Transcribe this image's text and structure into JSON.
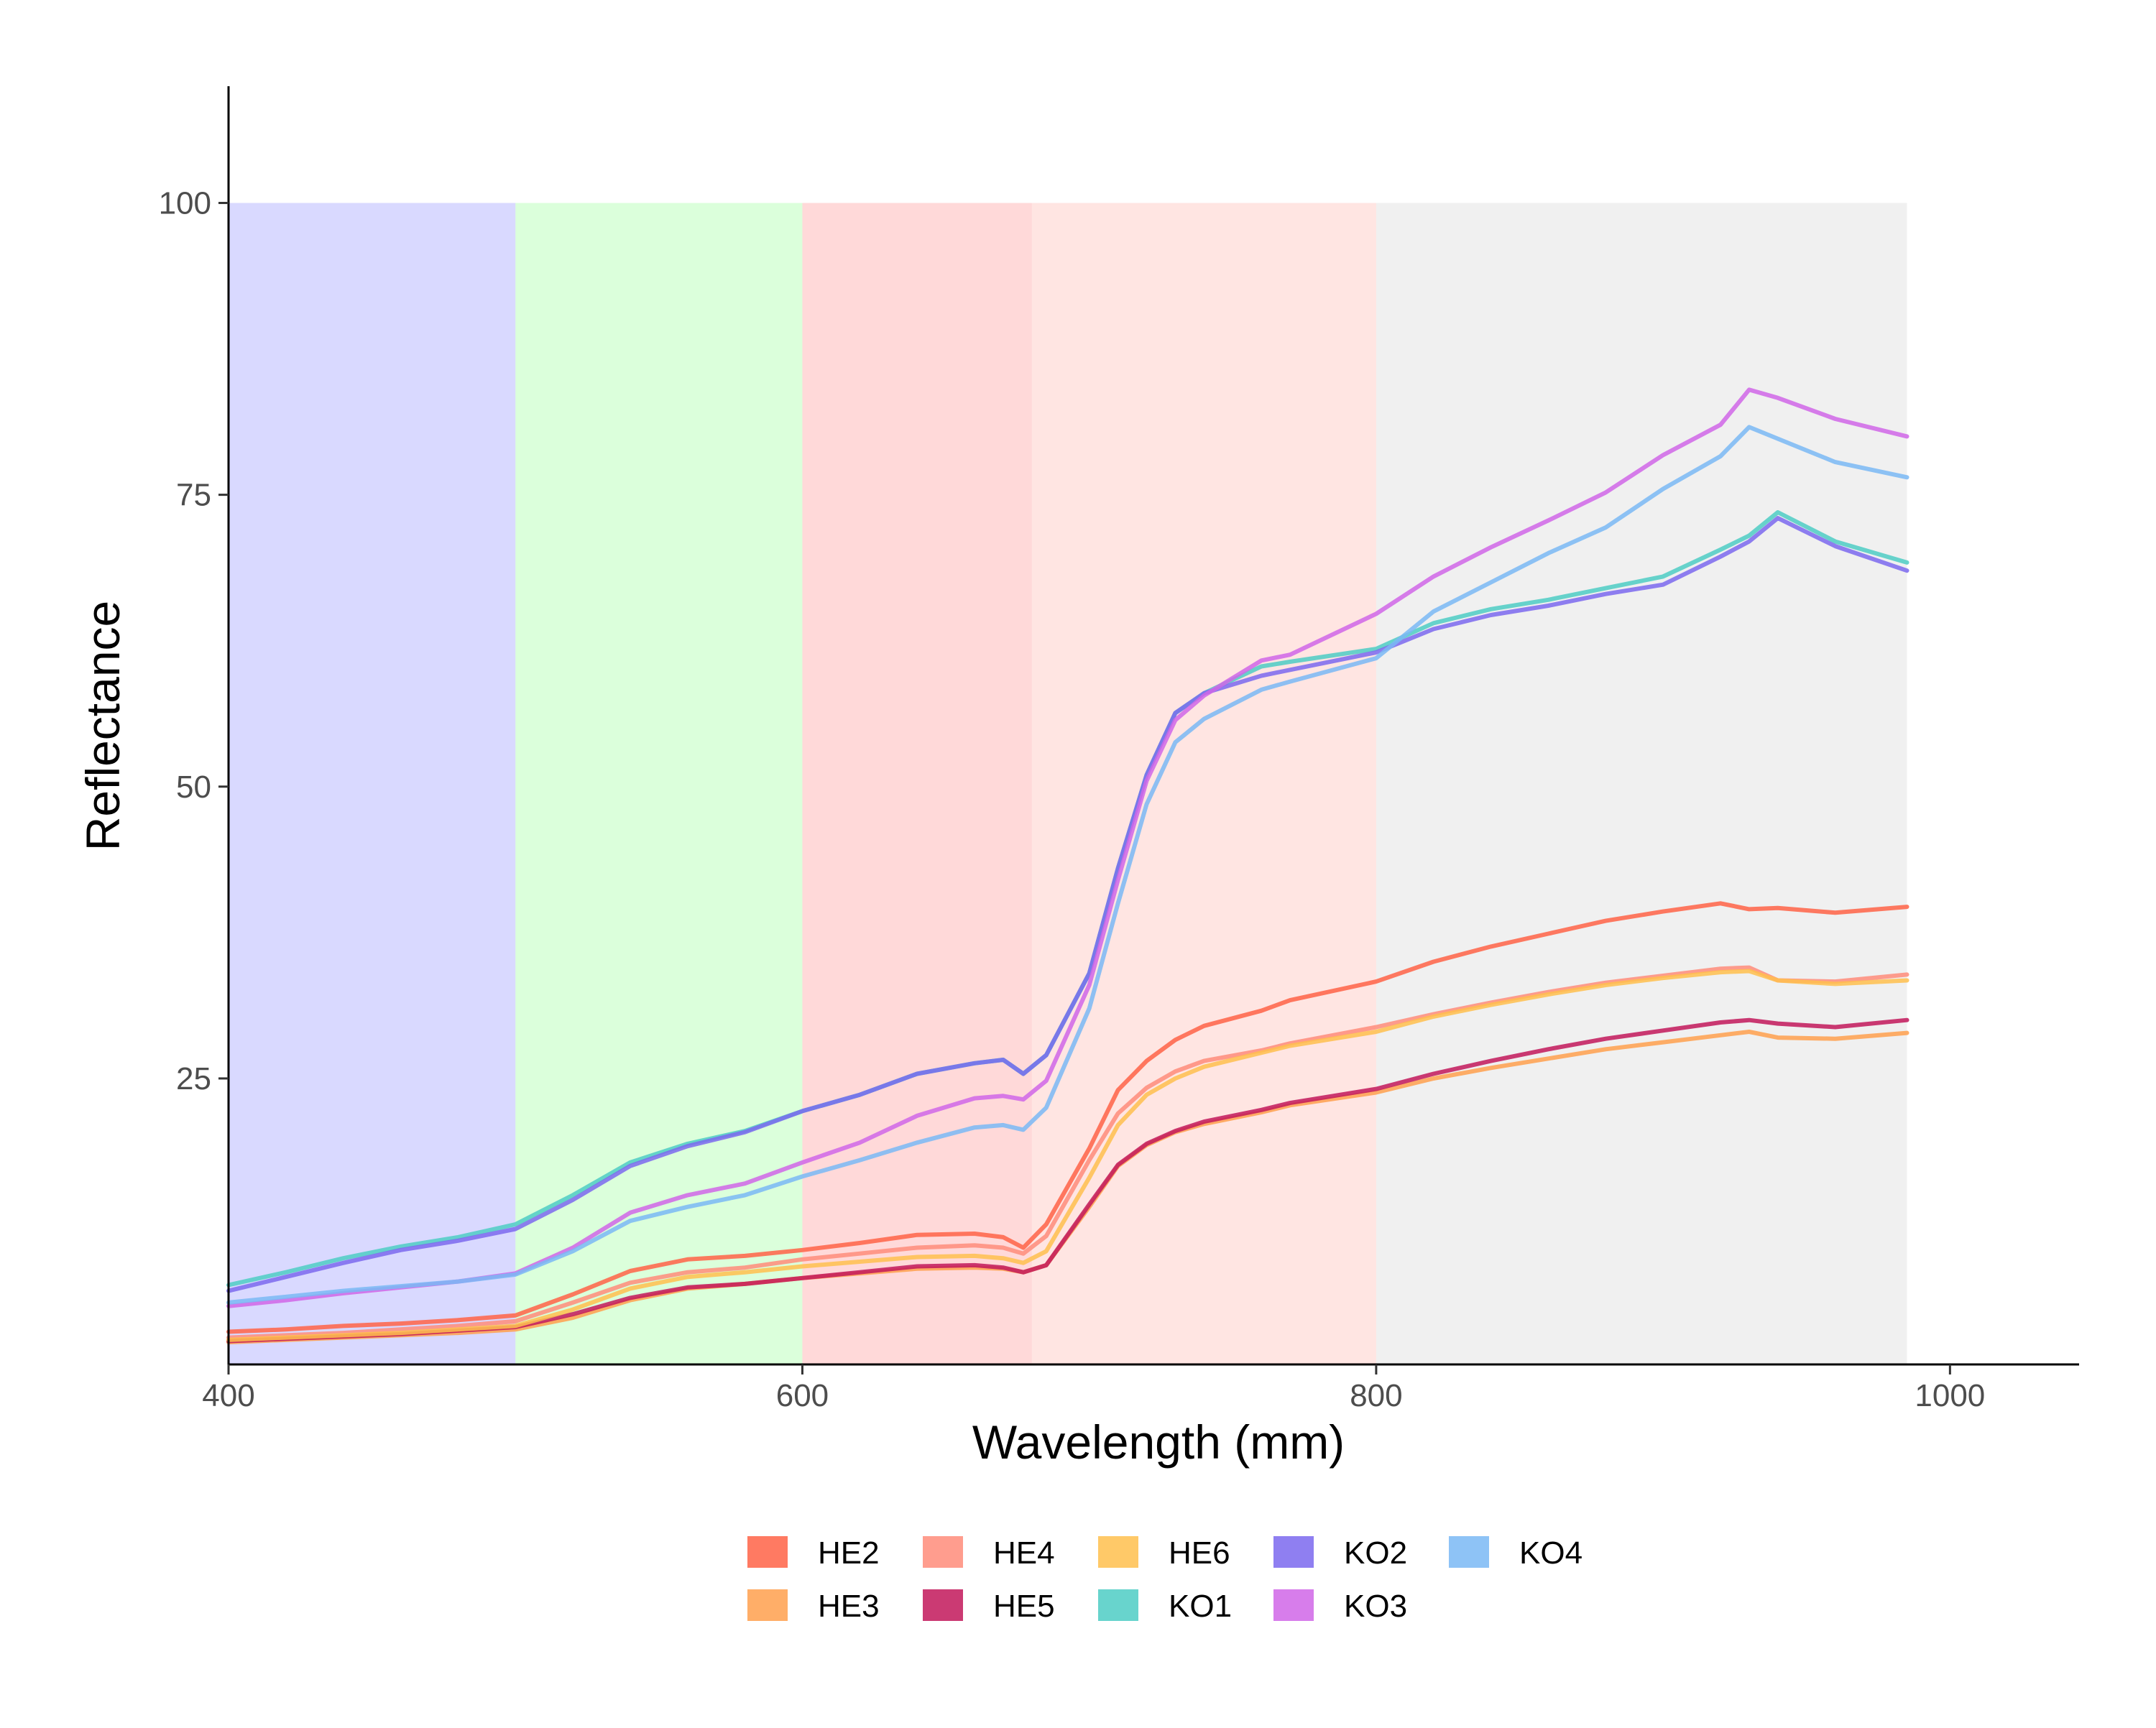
{
  "chart_data": {
    "type": "line",
    "title": "",
    "xlabel": "Wavelength (mm)",
    "ylabel": "Reflectance",
    "xlim": [
      400,
      1045
    ],
    "ylim": [
      0.5,
      110
    ],
    "x_ticks": [
      400,
      600,
      800,
      1000
    ],
    "x_tick_labels": [
      "400",
      "600",
      "800",
      "1000"
    ],
    "y_ticks": [
      25,
      50,
      75,
      100
    ],
    "y_tick_labels": [
      "25",
      "50",
      "75",
      "100"
    ],
    "grid": false,
    "legend_position": "bottom",
    "bands": [
      {
        "x0": 400,
        "x1": 500,
        "y0": 0.5,
        "y1": 100,
        "color": "#0000ff",
        "opacity": 0.15
      },
      {
        "x0": 500,
        "x1": 600,
        "y0": 0.5,
        "y1": 100,
        "color": "#00ff00",
        "opacity": 0.14
      },
      {
        "x0": 600,
        "x1": 680,
        "y0": 0.5,
        "y1": 100,
        "color": "#ff0000",
        "opacity": 0.15
      },
      {
        "x0": 680,
        "x1": 800,
        "y0": 0.5,
        "y1": 100,
        "color": "#ff4433",
        "opacity": 0.14
      },
      {
        "x0": 800,
        "x1": 985,
        "y0": 0.5,
        "y1": 100,
        "color": "#a0a0a0",
        "opacity": 0.16
      }
    ],
    "x": [
      400,
      420,
      440,
      460,
      480,
      500,
      520,
      540,
      560,
      580,
      600,
      620,
      640,
      660,
      670,
      677,
      685,
      700,
      710,
      720,
      730,
      740,
      760,
      770,
      800,
      820,
      840,
      860,
      880,
      900,
      920,
      930,
      940,
      960,
      985
    ],
    "series": [
      {
        "name": "HE2",
        "color": "#ff6347",
        "values": [
          3.3,
          3.5,
          3.8,
          4.0,
          4.3,
          4.7,
          6.5,
          8.5,
          9.5,
          9.8,
          10.3,
          10.9,
          11.6,
          11.7,
          11.4,
          10.5,
          12.5,
          19,
          24,
          26.5,
          28.3,
          29.5,
          30.8,
          31.7,
          33.3,
          35.0,
          36.3,
          37.4,
          38.5,
          39.3,
          40.0,
          39.5,
          39.6,
          39.2,
          39.7
        ]
      },
      {
        "name": "HE3",
        "color": "#ffa04d",
        "values": [
          2.4,
          2.6,
          2.8,
          3.0,
          3.2,
          3.5,
          4.5,
          6.0,
          7.0,
          7.4,
          7.9,
          8.3,
          8.7,
          8.8,
          8.7,
          8.4,
          9.0,
          14,
          17.5,
          19.3,
          20.4,
          21.1,
          22.1,
          22.7,
          23.8,
          25.0,
          25.9,
          26.7,
          27.5,
          28.1,
          28.7,
          29.0,
          28.5,
          28.4,
          28.9
        ]
      },
      {
        "name": "HE4",
        "color": "#ff8c7a",
        "values": [
          2.8,
          3.0,
          3.2,
          3.5,
          3.8,
          4.2,
          5.8,
          7.5,
          8.4,
          8.8,
          9.5,
          10.0,
          10.5,
          10.7,
          10.5,
          10.0,
          11.5,
          18,
          22,
          24.2,
          25.6,
          26.5,
          27.4,
          28.0,
          29.4,
          30.5,
          31.5,
          32.4,
          33.2,
          33.8,
          34.4,
          34.5,
          33.4,
          33.3,
          33.9
        ]
      },
      {
        "name": "HE5",
        "color": "#c2185b",
        "values": [
          2.5,
          2.7,
          2.9,
          3.1,
          3.4,
          3.7,
          4.8,
          6.2,
          7.1,
          7.4,
          7.9,
          8.4,
          8.9,
          9.0,
          8.8,
          8.4,
          9.0,
          14.2,
          17.6,
          19.4,
          20.5,
          21.3,
          22.3,
          22.9,
          24.1,
          25.4,
          26.5,
          27.5,
          28.4,
          29.1,
          29.8,
          30.0,
          29.7,
          29.4,
          30.0
        ]
      },
      {
        "name": "HE6",
        "color": "#ffc04d",
        "values": [
          2.6,
          2.8,
          3.0,
          3.2,
          3.5,
          3.8,
          5.2,
          7.0,
          8.0,
          8.4,
          8.9,
          9.3,
          9.7,
          9.8,
          9.6,
          9.2,
          10.2,
          16.5,
          21,
          23.6,
          25.0,
          26.0,
          27.2,
          27.8,
          29.0,
          30.3,
          31.3,
          32.2,
          33.0,
          33.6,
          34.1,
          34.2,
          33.4,
          33.1,
          33.4
        ]
      },
      {
        "name": "KO1",
        "color": "#4ecdc4",
        "values": [
          7.3,
          8.4,
          9.6,
          10.6,
          11.4,
          12.5,
          15.0,
          17.8,
          19.4,
          20.5,
          22.2,
          23.6,
          25.4,
          26.3,
          26.6,
          25.4,
          27.0,
          34,
          43,
          51,
          56.3,
          58.0,
          60.3,
          60.7,
          61.8,
          64.0,
          65.2,
          66.0,
          67.0,
          68.0,
          70.3,
          71.5,
          73.5,
          71.0,
          69.2
        ]
      },
      {
        "name": "KO2",
        "color": "#7b68ee",
        "values": [
          6.8,
          8.0,
          9.2,
          10.3,
          11.1,
          12.1,
          14.6,
          17.5,
          19.2,
          20.4,
          22.2,
          23.6,
          25.4,
          26.3,
          26.6,
          25.4,
          27.0,
          34,
          43,
          51,
          56.3,
          58.0,
          59.5,
          60.0,
          61.5,
          63.5,
          64.7,
          65.5,
          66.5,
          67.3,
          69.7,
          71.0,
          73.0,
          70.6,
          68.5
        ]
      },
      {
        "name": "KO3",
        "color": "#d066e8",
        "values": [
          5.5,
          6.0,
          6.6,
          7.1,
          7.6,
          8.3,
          10.5,
          13.5,
          15.0,
          16.0,
          17.8,
          19.5,
          21.8,
          23.3,
          23.5,
          23.2,
          24.8,
          33,
          42,
          50.5,
          55.7,
          57.8,
          60.8,
          61.3,
          64.8,
          68.0,
          70.5,
          72.8,
          75.2,
          78.4,
          81.0,
          84.0,
          83.3,
          81.5,
          80.0
        ]
      },
      {
        "name": "KO4",
        "color": "#7ab8f5",
        "values": [
          5.8,
          6.3,
          6.8,
          7.2,
          7.6,
          8.2,
          10.2,
          12.8,
          14.0,
          15.0,
          16.6,
          18.0,
          19.5,
          20.8,
          21.0,
          20.6,
          22.5,
          31,
          40,
          48.5,
          53.8,
          55.8,
          58.3,
          59.0,
          61.0,
          65.0,
          67.5,
          70.0,
          72.2,
          75.5,
          78.3,
          80.8,
          79.8,
          77.8,
          76.5
        ]
      }
    ]
  },
  "legend": {
    "items": [
      {
        "label": "HE2",
        "color": "#ff6347"
      },
      {
        "label": "HE3",
        "color": "#ffa04d"
      },
      {
        "label": "HE4",
        "color": "#ff8c7a"
      },
      {
        "label": "HE5",
        "color": "#c2185b"
      },
      {
        "label": "HE6",
        "color": "#ffc04d"
      },
      {
        "label": "KO1",
        "color": "#4ecdc4"
      },
      {
        "label": "KO2",
        "color": "#7b68ee"
      },
      {
        "label": "KO3",
        "color": "#d066e8"
      },
      {
        "label": "KO4",
        "color": "#7ab8f5"
      }
    ]
  }
}
